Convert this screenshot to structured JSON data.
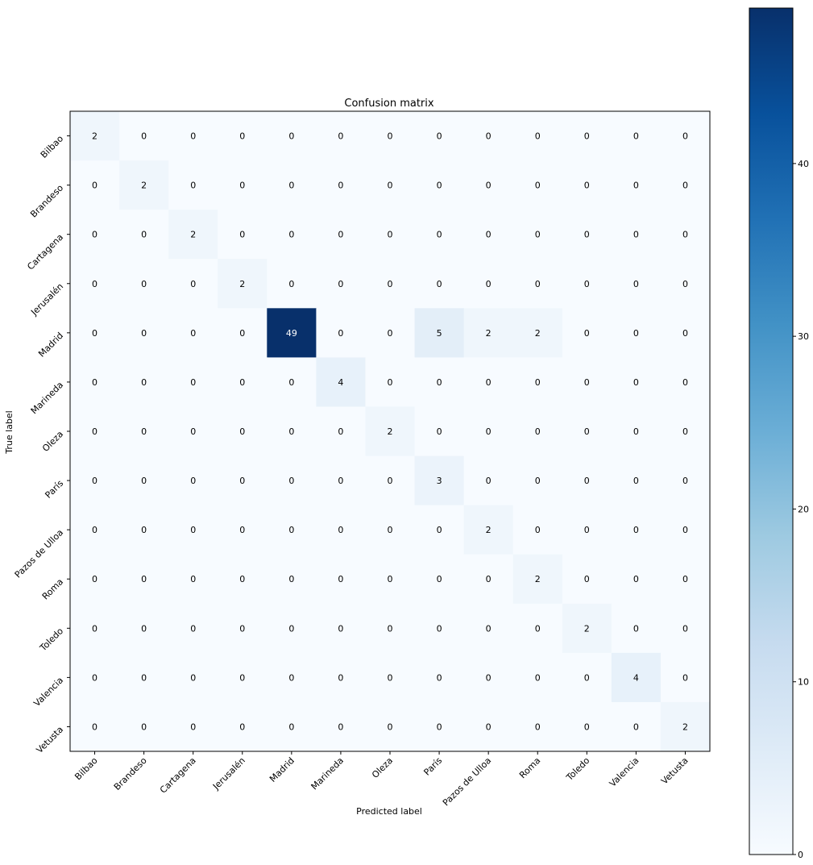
{
  "chart_data": {
    "type": "heatmap",
    "title": "Confusion matrix",
    "xlabel": "Predicted label",
    "ylabel": "True label",
    "labels": [
      "Bilbao",
      "Brandeso",
      "Cartagena",
      "Jerusalén",
      "Madrid",
      "Marineda",
      "Oleza",
      "París",
      "Pazos de Ulloa",
      "Roma",
      "Toledo",
      "Valencia",
      "Vetusta"
    ],
    "matrix": [
      [
        2,
        0,
        0,
        0,
        0,
        0,
        0,
        0,
        0,
        0,
        0,
        0,
        0
      ],
      [
        0,
        2,
        0,
        0,
        0,
        0,
        0,
        0,
        0,
        0,
        0,
        0,
        0
      ],
      [
        0,
        0,
        2,
        0,
        0,
        0,
        0,
        0,
        0,
        0,
        0,
        0,
        0
      ],
      [
        0,
        0,
        0,
        2,
        0,
        0,
        0,
        0,
        0,
        0,
        0,
        0,
        0
      ],
      [
        0,
        0,
        0,
        0,
        49,
        0,
        0,
        5,
        2,
        2,
        0,
        0,
        0
      ],
      [
        0,
        0,
        0,
        0,
        0,
        4,
        0,
        0,
        0,
        0,
        0,
        0,
        0
      ],
      [
        0,
        0,
        0,
        0,
        0,
        0,
        2,
        0,
        0,
        0,
        0,
        0,
        0
      ],
      [
        0,
        0,
        0,
        0,
        0,
        0,
        0,
        3,
        0,
        0,
        0,
        0,
        0
      ],
      [
        0,
        0,
        0,
        0,
        0,
        0,
        0,
        0,
        2,
        0,
        0,
        0,
        0
      ],
      [
        0,
        0,
        0,
        0,
        0,
        0,
        0,
        0,
        0,
        2,
        0,
        0,
        0
      ],
      [
        0,
        0,
        0,
        0,
        0,
        0,
        0,
        0,
        0,
        0,
        2,
        0,
        0
      ],
      [
        0,
        0,
        0,
        0,
        0,
        0,
        0,
        0,
        0,
        0,
        0,
        4,
        0
      ],
      [
        0,
        0,
        0,
        0,
        0,
        0,
        0,
        0,
        0,
        0,
        0,
        0,
        2
      ]
    ],
    "colormap": "Blues",
    "colorbar": {
      "min": 0,
      "max": 49,
      "ticks": [
        0,
        10,
        20,
        30,
        40
      ]
    },
    "grid": false
  }
}
